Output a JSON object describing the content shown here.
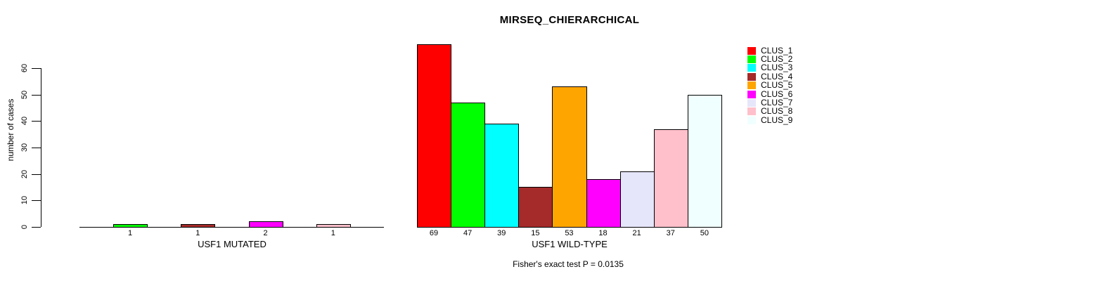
{
  "figure": {
    "title": "MIRSEQ_CHIERARCHICAL",
    "subtitle": "Fisher's exact test P = 0.0135",
    "ylabel": "number of cases"
  },
  "chart_data": {
    "type": "bar",
    "title": "MIRSEQ_CHIERARCHICAL",
    "ylabel": "number of cases",
    "ylim": [
      0,
      60
    ],
    "yticks": [
      0,
      10,
      20,
      30,
      40,
      50,
      60
    ],
    "grid": false,
    "legend_position": "right",
    "legend_entries": [
      "CLUS_1",
      "CLUS_2",
      "CLUS_3",
      "CLUS_4",
      "CLUS_5",
      "CLUS_6",
      "CLUS_7",
      "CLUS_8",
      "CLUS_9"
    ],
    "colors": [
      "#FF0000",
      "#00FF00",
      "#00FFFF",
      "#A52A2A",
      "#FFA500",
      "#FF00FF",
      "#E6E6FA",
      "#FFC0CB",
      "#F0FFFF"
    ],
    "groups": [
      {
        "label": "USF1 MUTATED",
        "values": [
          0,
          1,
          0,
          1,
          0,
          2,
          0,
          1,
          0
        ],
        "bar_labels": [
          "",
          "1",
          "",
          "1",
          "",
          "2",
          "",
          "1",
          ""
        ]
      },
      {
        "label": "USF1 WILD-TYPE",
        "values": [
          69,
          47,
          39,
          15,
          53,
          18,
          21,
          37,
          50
        ],
        "bar_labels": [
          "69",
          "47",
          "39",
          "15",
          "53",
          "18",
          "21",
          "37",
          "50"
        ]
      }
    ],
    "annotation": "Fisher's exact test P = 0.0135",
    "axis_color": "#000000",
    "background_color": "#FFFFFF"
  }
}
